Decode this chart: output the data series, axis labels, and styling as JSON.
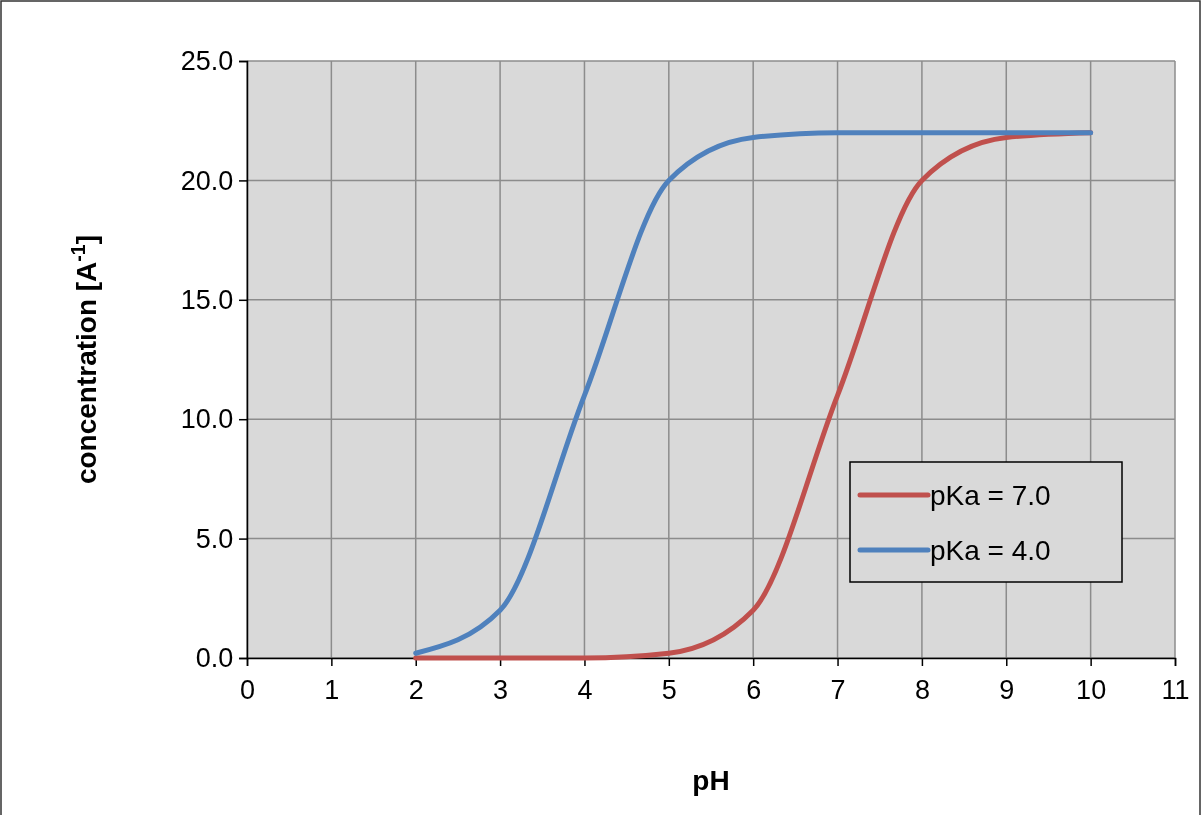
{
  "chart_data": {
    "type": "line",
    "xlabel": "pH",
    "ylabel": "concentration [A$^{-1}$]",
    "x": [
      2,
      3,
      4,
      5,
      6,
      7,
      8,
      9,
      10
    ],
    "series": [
      {
        "name": "pKa = 7.0",
        "color": "#c0504d",
        "values": [
          0.0,
          0.0,
          0.0,
          0.2,
          2.0,
          11.0,
          20.0,
          21.8,
          22.0
        ]
      },
      {
        "name": "pKa = 4.0",
        "color": "#4f81bd",
        "values": [
          0.2,
          2.0,
          11.0,
          20.0,
          21.8,
          22.0,
          22.0,
          22.0,
          22.0
        ]
      }
    ],
    "xlim": [
      0,
      11
    ],
    "xticks": [
      0,
      1,
      2,
      3,
      4,
      5,
      6,
      7,
      8,
      9,
      10,
      11
    ],
    "ylim": [
      0,
      25
    ],
    "yticks": [
      {
        "value": 0,
        "label": "0.0"
      },
      {
        "value": 5,
        "label": "5.0"
      },
      {
        "value": 10,
        "label": "10.0"
      },
      {
        "value": 15,
        "label": "15.0"
      },
      {
        "value": 20,
        "label": "20.0"
      },
      {
        "value": 25,
        "label": "25.0"
      }
    ],
    "grid": true,
    "legend": "bottom right",
    "marker": "none",
    "line_style": "solid"
  }
}
